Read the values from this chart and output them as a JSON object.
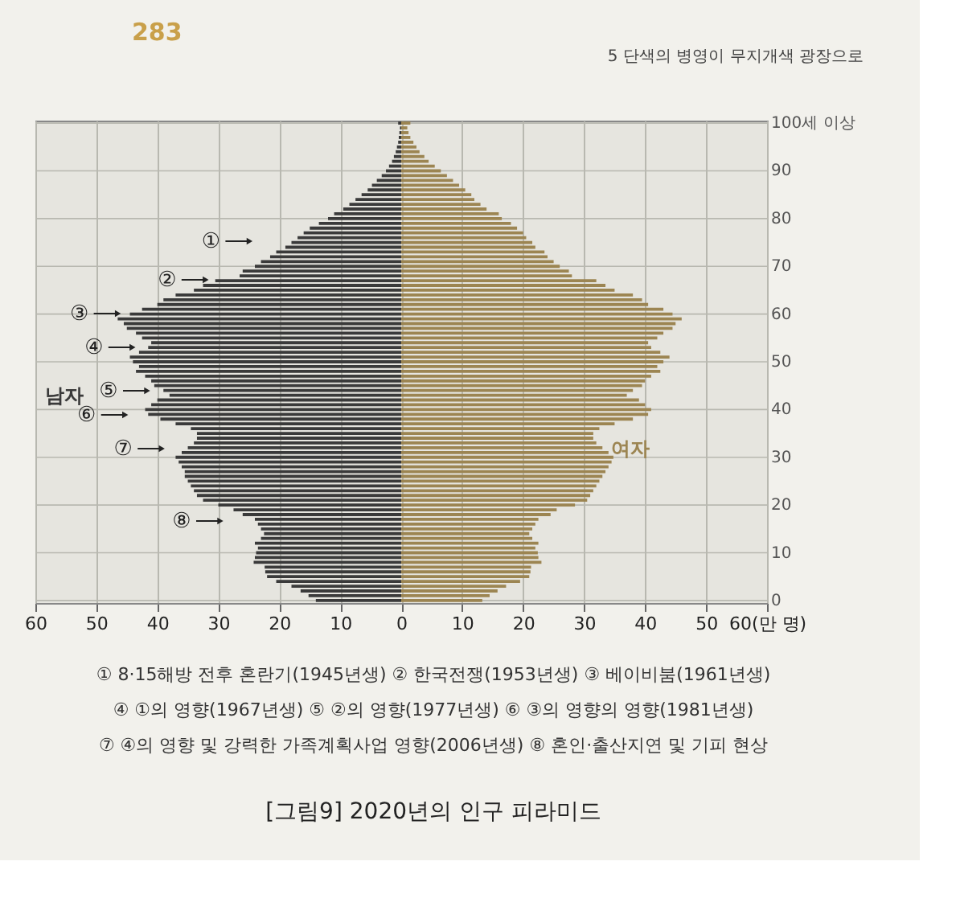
{
  "chart_data": {
    "type": "bar",
    "orientation": "horizontal",
    "title": "[그림9] 2020년의 인구 피라미드",
    "categories": [
      "100세 이상",
      null,
      null,
      null,
      null,
      null,
      null,
      null,
      null,
      null,
      "90",
      null,
      null,
      null,
      null,
      null,
      null,
      null,
      null,
      null,
      "80",
      null,
      null,
      null,
      null,
      null,
      null,
      null,
      null,
      null,
      "70",
      null,
      null,
      null,
      null,
      null,
      null,
      null,
      null,
      null,
      "60",
      null,
      null,
      null,
      null,
      null,
      null,
      null,
      null,
      null,
      "50",
      null,
      null,
      null,
      null,
      null,
      null,
      null,
      null,
      null,
      "40",
      null,
      null,
      null,
      null,
      null,
      null,
      null,
      null,
      null,
      "30",
      null,
      null,
      null,
      null,
      null,
      null,
      null,
      null,
      null,
      "20",
      null,
      null,
      null,
      null,
      null,
      null,
      null,
      null,
      null,
      "10",
      null,
      null,
      null,
      null,
      null,
      null,
      null,
      null,
      null,
      "0"
    ],
    "series": [
      {
        "name": "남자",
        "color": "#3a3a3a",
        "values": [
          -0.5,
          -0.2,
          -0.3,
          -0.4,
          -0.5,
          -0.7,
          -0.9,
          -1.2,
          -1.5,
          -2.0,
          -2.5,
          -3.2,
          -4.0,
          -4.8,
          -5.5,
          -6.5,
          -7.5,
          -8.5,
          -9.5,
          -11.0,
          -12.0,
          -13.5,
          -15.0,
          -16.0,
          -17.0,
          -18.0,
          -19.0,
          -20.5,
          -21.5,
          -23.0,
          -24.0,
          -26.0,
          -26.5,
          -30.5,
          -32.5,
          -34.0,
          -37.0,
          -39.0,
          -40.0,
          -42.5,
          -44.5,
          -46.5,
          -45.5,
          -45.0,
          -43.5,
          -42.5,
          -41.0,
          -41.5,
          -43.0,
          -44.5,
          -44.0,
          -43.0,
          -43.5,
          -42.0,
          -41.0,
          -40.5,
          -39.0,
          -38.0,
          -40.0,
          -41.0,
          -42.0,
          -41.5,
          -39.5,
          -37.0,
          -34.5,
          -33.5,
          -33.5,
          -34.0,
          -35.0,
          -36.0,
          -37.0,
          -36.5,
          -36.0,
          -35.5,
          -35.5,
          -35.0,
          -34.5,
          -34.0,
          -33.5,
          -32.5,
          -30.0,
          -27.5,
          -26.0,
          -24.0,
          -23.5,
          -23.0,
          -22.5,
          -23.0,
          -24.0,
          -23.5,
          -23.8,
          -24.0,
          -24.2,
          -22.4,
          -22.3,
          -22.0,
          -20.5,
          -18.0,
          -16.5,
          -15.2,
          -14.0
        ]
      },
      {
        "name": "여자",
        "color": "#9c8552",
        "values": [
          1.5,
          1.0,
          1.2,
          1.5,
          2.0,
          2.5,
          3.0,
          3.8,
          4.5,
          5.5,
          6.5,
          7.5,
          8.5,
          9.5,
          10.5,
          11.5,
          12.0,
          13.0,
          14.0,
          16.0,
          16.5,
          18.0,
          19.0,
          20.0,
          20.5,
          21.5,
          22.0,
          23.5,
          24.0,
          25.0,
          26.0,
          27.5,
          28.0,
          32.0,
          33.5,
          35.0,
          38.0,
          39.5,
          40.5,
          43.0,
          44.5,
          46.0,
          45.0,
          44.5,
          43.0,
          42.0,
          40.5,
          41.0,
          42.5,
          44.0,
          43.0,
          42.0,
          42.5,
          41.0,
          40.0,
          39.5,
          38.0,
          37.0,
          39.0,
          40.0,
          41.0,
          40.5,
          38.0,
          35.0,
          32.5,
          31.5,
          31.5,
          32.0,
          33.0,
          34.0,
          34.8,
          34.5,
          34.0,
          33.5,
          33.0,
          32.5,
          32.0,
          31.5,
          31.0,
          30.5,
          28.5,
          25.5,
          24.5,
          22.5,
          22.0,
          21.5,
          21.0,
          21.5,
          22.5,
          22.0,
          22.4,
          22.5,
          23.0,
          21.3,
          21.2,
          21.0,
          19.5,
          17.2,
          15.8,
          14.5,
          13.3
        ]
      }
    ],
    "xlim": [
      -60,
      60
    ],
    "xticks": [
      {
        "value": -60,
        "label": "60"
      },
      {
        "value": -50,
        "label": "50"
      },
      {
        "value": -40,
        "label": "40"
      },
      {
        "value": -30,
        "label": "30"
      },
      {
        "value": -20,
        "label": "20"
      },
      {
        "value": -10,
        "label": "10"
      },
      0,
      10,
      20,
      30,
      40,
      50,
      {
        "value": 60,
        "label": "60(만 명)"
      }
    ],
    "grid": true,
    "legend": false,
    "annotations": [
      "283",
      "5 단색의 병영이 무지개색 광장으로",
      "① 8·15해방 전후 혼란기(1945년생)  ② 한국전쟁(1953년생)  ③ 베이비붐(1961년생)",
      "④ ①의 영향(1967년생)  ⑤ ②의 영향(1977년생)  ⑥ ③의 영향의 영향(1981년생)",
      "⑦ ④의 영향 및 강력한 가족계획사업 영향(2006년생)  ⑧ 혼인·출산지연 및 기피 현상",
      "①",
      "②",
      "③",
      "④",
      "⑤",
      "⑥",
      "⑦",
      "⑧"
    ]
  }
}
